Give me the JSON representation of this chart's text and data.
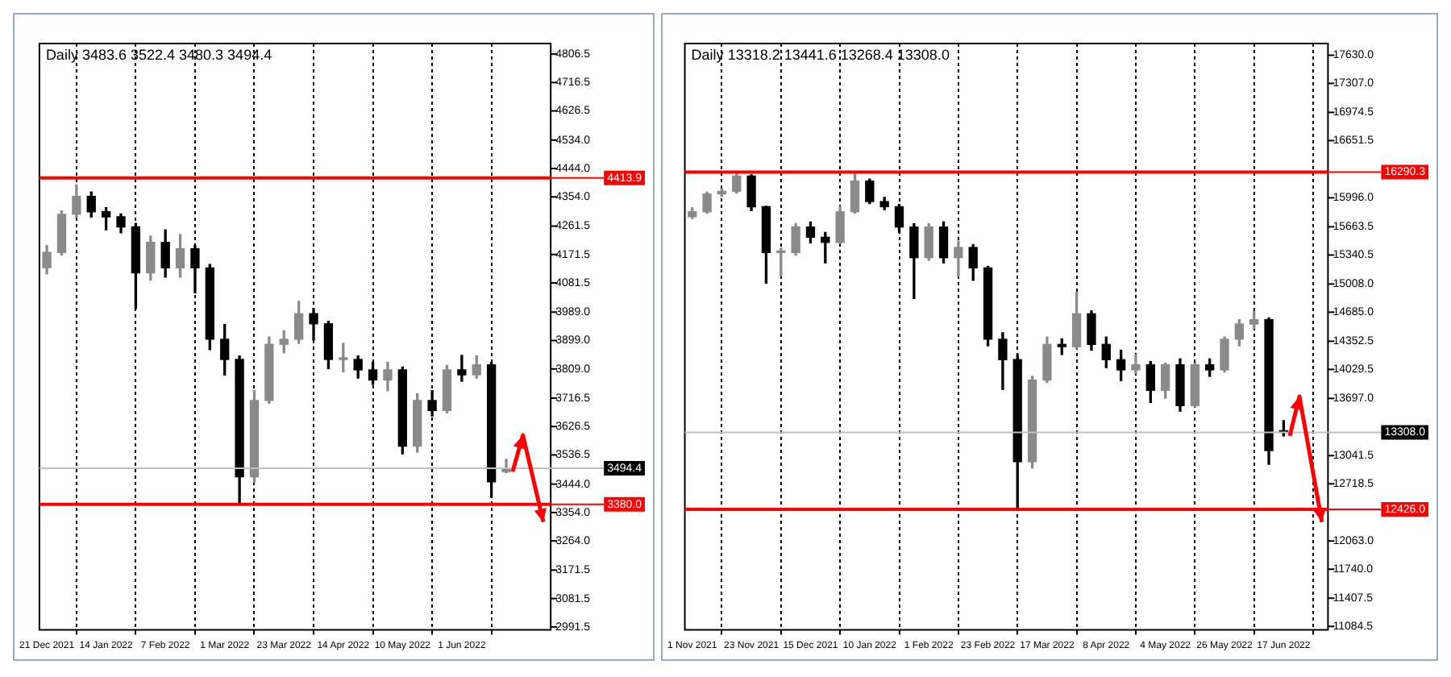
{
  "chart_data": [
    {
      "type": "candlestick",
      "title": "Daily",
      "subtitle": "3483.6 3522.4 3480.3 3494.4",
      "categories": [
        "21 Dec 2021",
        null,
        null,
        null,
        "14 Jan 2022",
        null,
        null,
        null,
        "7 Feb 2022",
        null,
        null,
        null,
        "1 Mar 2022",
        null,
        null,
        null,
        "23 Mar 2022",
        null,
        null,
        null,
        "14 Apr 2022",
        null,
        null,
        null,
        "10 May 2022",
        null,
        null,
        null,
        "1 Jun 2022",
        null,
        null,
        null
      ],
      "ohlc": [
        [
          4130,
          4200,
          4110,
          4178
        ],
        [
          4178,
          4310,
          4170,
          4299
        ],
        [
          4299,
          4392,
          4290,
          4356
        ],
        [
          4356,
          4370,
          4290,
          4307
        ],
        [
          4307,
          4320,
          4250,
          4291
        ],
        [
          4291,
          4300,
          4240,
          4259
        ],
        [
          4259,
          4270,
          4000,
          4113
        ],
        [
          4113,
          4230,
          4090,
          4210
        ],
        [
          4210,
          4250,
          4100,
          4129
        ],
        [
          4129,
          4235,
          4100,
          4190
        ],
        [
          4190,
          4200,
          4050,
          4129
        ],
        [
          4129,
          4140,
          3870,
          3903
        ],
        [
          3903,
          3950,
          3790,
          3839
        ],
        [
          3839,
          3850,
          3381,
          3467
        ],
        [
          3467,
          3740,
          3450,
          3709
        ],
        [
          3709,
          3910,
          3700,
          3887
        ],
        [
          3887,
          3930,
          3860,
          3903
        ],
        [
          3903,
          4023,
          3890,
          3984
        ],
        [
          3984,
          4000,
          3900,
          3952
        ],
        [
          3952,
          3960,
          3810,
          3839
        ],
        [
          3839,
          3890,
          3800,
          3839
        ],
        [
          3839,
          3850,
          3780,
          3806
        ],
        [
          3806,
          3830,
          3760,
          3774
        ],
        [
          3774,
          3830,
          3740,
          3806
        ],
        [
          3806,
          3815,
          3540,
          3564
        ],
        [
          3564,
          3730,
          3545,
          3709
        ],
        [
          3709,
          3740,
          3660,
          3677
        ],
        [
          3677,
          3820,
          3670,
          3806
        ],
        [
          3806,
          3852,
          3770,
          3790
        ],
        [
          3790,
          3850,
          3780,
          3822
        ],
        [
          3822,
          3830,
          3402,
          3451
        ],
        [
          3483.6,
          3522.4,
          3480.3,
          3494.4
        ]
      ],
      "ylim": [
        2982,
        4840
      ],
      "yticks": [
        {
          "value": 4806.5,
          "label": "4806.5"
        },
        {
          "value": 4716.5,
          "label": "4716.5"
        },
        {
          "value": 4626.5,
          "label": "4626.5"
        },
        {
          "value": 4534,
          "label": "4534.0"
        },
        {
          "value": 4444,
          "label": "4444.0"
        },
        {
          "value": 4354,
          "label": "4354.0"
        },
        {
          "value": 4261.5,
          "label": "4261.5"
        },
        {
          "value": 4171.5,
          "label": "4171.5"
        },
        {
          "value": 4081.5,
          "label": "4081.5"
        },
        {
          "value": 3989,
          "label": "3989.0"
        },
        {
          "value": 3899,
          "label": "3899.0"
        },
        {
          "value": 3809,
          "label": "3809.0"
        },
        {
          "value": 3716.5,
          "label": "3716.5"
        },
        {
          "value": 3626.5,
          "label": "3626.5"
        },
        {
          "value": 3536.5,
          "label": "3536.5"
        },
        {
          "value": 3444,
          "label": "3444.0"
        },
        {
          "value": 3354,
          "label": "3354.0"
        },
        {
          "value": 3264,
          "label": "3264.0"
        },
        {
          "value": 3171.5,
          "label": "3171.5"
        },
        {
          "value": 3081.5,
          "label": "3081.5"
        },
        {
          "value": 2991.5,
          "label": "2991.5"
        }
      ],
      "grid": "x",
      "ref_lines": [
        {
          "axis": "y",
          "value": 4413.9,
          "label": "4413.9",
          "color": "#ff0000"
        },
        {
          "axis": "y",
          "value": 3380.0,
          "label": "3380.0",
          "color": "#ff0000"
        },
        {
          "axis": "y",
          "value": 3494.4,
          "label": "3494.4",
          "color": "#c0c0c0"
        }
      ]
    },
    {
      "type": "candlestick",
      "title": "Daily",
      "subtitle": "13318.2 13441.6 13268.4 13308.0",
      "categories": [
        "1 Nov 2021",
        null,
        null,
        null,
        "23 Nov 2021",
        null,
        null,
        null,
        "15 Dec 2021",
        null,
        null,
        null,
        "10 Jan 2022",
        null,
        null,
        null,
        "1 Feb 2022",
        null,
        null,
        null,
        "23 Feb 2022",
        null,
        null,
        null,
        "17 Mar 2022",
        null,
        null,
        null,
        "8 Apr 2022",
        null,
        null,
        null,
        "4 May 2022",
        null,
        null,
        null,
        "26 May 2022",
        null,
        null,
        null,
        "17 Jun 2022"
      ],
      "ohlc": [
        [
          15780,
          15880,
          15760,
          15836
        ],
        [
          15836,
          16060,
          15820,
          16040
        ],
        [
          16040,
          16100,
          16010,
          16070
        ],
        [
          16070,
          16290,
          16050,
          16245
        ],
        [
          16245,
          16260,
          15850,
          15894
        ],
        [
          15894,
          15900,
          15018,
          15368
        ],
        [
          15368,
          15420,
          15100,
          15368
        ],
        [
          15368,
          15700,
          15340,
          15661
        ],
        [
          15661,
          15720,
          15480,
          15544
        ],
        [
          15544,
          15600,
          15250,
          15485
        ],
        [
          15485,
          15900,
          15470,
          15836
        ],
        [
          15836,
          16290,
          15820,
          16187
        ],
        [
          16187,
          16210,
          15930,
          15953
        ],
        [
          15953,
          16000,
          15860,
          15894
        ],
        [
          15894,
          15920,
          15600,
          15661
        ],
        [
          15661,
          15700,
          14842,
          15310
        ],
        [
          15310,
          15700,
          15280,
          15661
        ],
        [
          15661,
          15720,
          15250,
          15310
        ],
        [
          15310,
          15500,
          15100,
          15427
        ],
        [
          15427,
          15460,
          15050,
          15193
        ],
        [
          15193,
          15210,
          14300,
          14375
        ],
        [
          14375,
          14450,
          13800,
          14141
        ],
        [
          14141,
          14200,
          12446,
          12972
        ],
        [
          12972,
          13950,
          12900,
          13907
        ],
        [
          13907,
          14400,
          13880,
          14316
        ],
        [
          14316,
          14380,
          14200,
          14290
        ],
        [
          14290,
          14913,
          14270,
          14667
        ],
        [
          14667,
          14700,
          14250,
          14316
        ],
        [
          14316,
          14400,
          14050,
          14141
        ],
        [
          14141,
          14250,
          13900,
          14024
        ],
        [
          14024,
          14200,
          13980,
          14083
        ],
        [
          14083,
          14120,
          13650,
          13790
        ],
        [
          13790,
          14100,
          13700,
          14083
        ],
        [
          14083,
          14150,
          13550,
          13615
        ],
        [
          13615,
          14100,
          13600,
          14083
        ],
        [
          14083,
          14150,
          13950,
          14024
        ],
        [
          14024,
          14400,
          14000,
          14375
        ],
        [
          14375,
          14600,
          14300,
          14550
        ],
        [
          14550,
          14696,
          14500,
          14600
        ],
        [
          14600,
          14620,
          12943,
          13100
        ],
        [
          13318.2,
          13441.6,
          13268.4,
          13308.0
        ]
      ],
      "ylim": [
        11044,
        17764
      ],
      "yticks": [
        {
          "value": 17630,
          "label": "17630.0"
        },
        {
          "value": 17307,
          "label": "17307.0"
        },
        {
          "value": 16974.5,
          "label": "16974.5"
        },
        {
          "value": 16651.5,
          "label": "16651.5"
        },
        {
          "value": 15996,
          "label": "15996.0"
        },
        {
          "value": 15663.5,
          "label": "15663.5"
        },
        {
          "value": 15340.5,
          "label": "15340.5"
        },
        {
          "value": 15008,
          "label": "15008.0"
        },
        {
          "value": 14685,
          "label": "14685.0"
        },
        {
          "value": 14352.5,
          "label": "14352.5"
        },
        {
          "value": 14029.5,
          "label": "14029.5"
        },
        {
          "value": 13697,
          "label": "13697.0"
        },
        {
          "value": 13041.5,
          "label": "13041.5"
        },
        {
          "value": 12718.5,
          "label": "12718.5"
        },
        {
          "value": 12063,
          "label": "12063.0"
        },
        {
          "value": 11740,
          "label": "11740.0"
        },
        {
          "value": 11407.5,
          "label": "11407.5"
        },
        {
          "value": 11084.5,
          "label": "11084.5"
        }
      ],
      "grid": "x",
      "ref_lines": [
        {
          "axis": "y",
          "value": 16290.3,
          "label": "16290.3",
          "color": "#ff0000"
        },
        {
          "axis": "y",
          "value": 12426.0,
          "label": "12426.0",
          "color": "#ff0000"
        },
        {
          "axis": "y",
          "value": 13308.0,
          "label": "13308.0",
          "color": "#c0c0c0"
        }
      ]
    }
  ]
}
